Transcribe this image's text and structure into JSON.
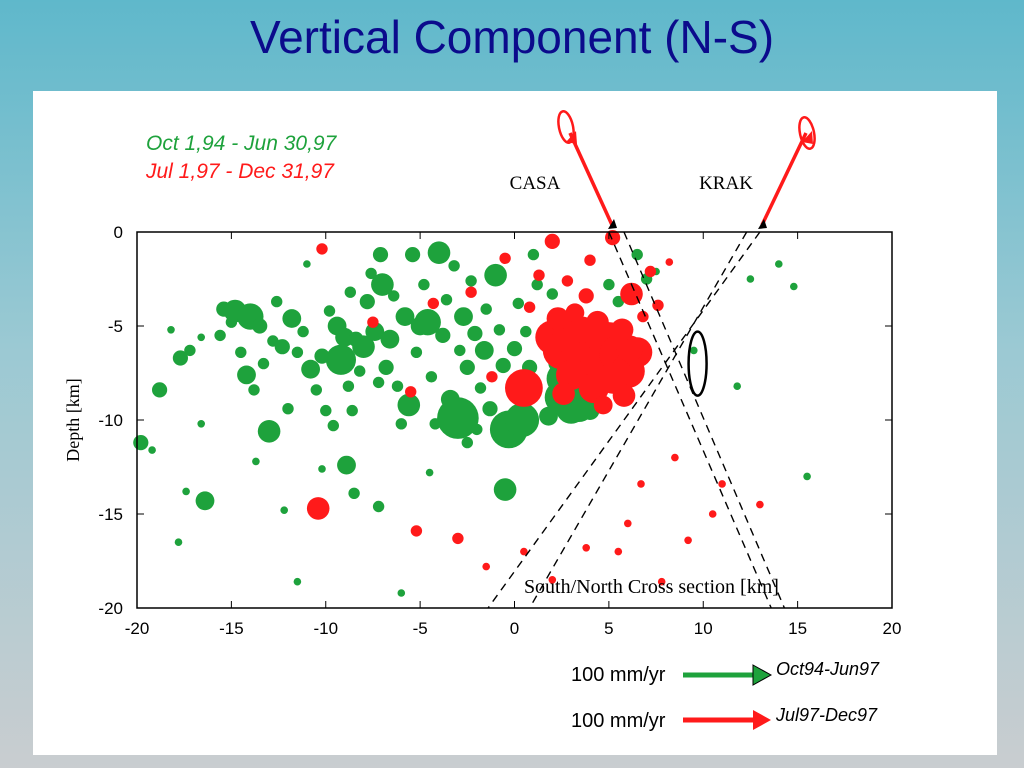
{
  "slide_title": "Vertical Component (N-S)",
  "colors": {
    "period1": "#1ea23c",
    "period2": "#ff1a1a",
    "title": "#0b0b8c"
  },
  "legend": {
    "period1": "Oct 1,94 - Jun 30,97",
    "period2": "Jul 1,97 - Dec 31,97"
  },
  "stations": [
    "CASA",
    "KRAK"
  ],
  "vector_scale": {
    "label1": "100 mm/yr",
    "period1_label": "Oct94-Jun97",
    "label2": "100 mm/yr",
    "period2_label": "Jul97-Dec97"
  },
  "chart_data": {
    "type": "scatter",
    "title": "",
    "xlabel": "South/North Cross section [km]",
    "ylabel": "Depth [km]",
    "xlim": [
      -20,
      20
    ],
    "ylim": [
      -20,
      0
    ],
    "xticks": [
      "-20",
      "-15",
      "-10",
      "-5",
      "0",
      "5",
      "10",
      "15",
      "20"
    ],
    "yticks": [
      "0",
      "-5",
      "-10",
      "-15",
      "-20"
    ],
    "grid": false,
    "legend_position": "top-left",
    "series": [
      {
        "name": "Oct 1,94 - Jun 30,97",
        "color": "#1ea23c",
        "points": [
          [
            -19.8,
            -11.2,
            0.4
          ],
          [
            -19.2,
            -11.6,
            0.2
          ],
          [
            -18.2,
            -5.2,
            0.2
          ],
          [
            -17.7,
            -6.7,
            0.4
          ],
          [
            -17.2,
            -6.3,
            0.3
          ],
          [
            -16.6,
            -5.6,
            0.2
          ],
          [
            -16.4,
            -14.3,
            0.5
          ],
          [
            -15.6,
            -5.5,
            0.3
          ],
          [
            -15.4,
            -4.1,
            0.4
          ],
          [
            -15,
            -4.8,
            0.3
          ],
          [
            -14.8,
            -4.2,
            0.6
          ],
          [
            -14.5,
            -6.4,
            0.3
          ],
          [
            -14.2,
            -7.6,
            0.5
          ],
          [
            -14,
            -4.5,
            0.7
          ],
          [
            -13.8,
            -8.4,
            0.3
          ],
          [
            -13.5,
            -5,
            0.4
          ],
          [
            -13.3,
            -7,
            0.3
          ],
          [
            -13,
            -10.6,
            0.6
          ],
          [
            -12.8,
            -5.8,
            0.3
          ],
          [
            -12.6,
            -3.7,
            0.3
          ],
          [
            -12.3,
            -6.1,
            0.4
          ],
          [
            -12,
            -9.4,
            0.3
          ],
          [
            -11.8,
            -4.6,
            0.5
          ],
          [
            -11.5,
            -6.4,
            0.3
          ],
          [
            -11.2,
            -5.3,
            0.3
          ],
          [
            -11,
            -1.7,
            0.2
          ],
          [
            -10.8,
            -7.3,
            0.5
          ],
          [
            -10.5,
            -8.4,
            0.3
          ],
          [
            -10.2,
            -6.6,
            0.4
          ],
          [
            -10,
            -9.5,
            0.3
          ],
          [
            -9.8,
            -4.2,
            0.3
          ],
          [
            -9.6,
            -10.3,
            0.3
          ],
          [
            -9.4,
            -5,
            0.5
          ],
          [
            -9.2,
            -6.8,
            0.8
          ],
          [
            -9,
            -5.6,
            0.5
          ],
          [
            -8.8,
            -8.2,
            0.3
          ],
          [
            -8.7,
            -3.2,
            0.3
          ],
          [
            -8.6,
            -9.5,
            0.3
          ],
          [
            -8.4,
            -5.7,
            0.4
          ],
          [
            -8.2,
            -7.4,
            0.3
          ],
          [
            -8,
            -6.1,
            0.6
          ],
          [
            -7.8,
            -3.7,
            0.4
          ],
          [
            -7.6,
            -2.2,
            0.3
          ],
          [
            -7.4,
            -5.3,
            0.5
          ],
          [
            -7.2,
            -8,
            0.3
          ],
          [
            -7.1,
            -1.2,
            0.4
          ],
          [
            -7,
            -2.8,
            0.6
          ],
          [
            -6.8,
            -7.2,
            0.4
          ],
          [
            -6.6,
            -5.7,
            0.5
          ],
          [
            -6.4,
            -3.4,
            0.3
          ],
          [
            -6.2,
            -8.2,
            0.3
          ],
          [
            -6,
            -10.2,
            0.3
          ],
          [
            -5.8,
            -4.5,
            0.5
          ],
          [
            -5.6,
            -9.2,
            0.6
          ],
          [
            -5.4,
            -1.2,
            0.4
          ],
          [
            -5.2,
            -6.4,
            0.3
          ],
          [
            -5,
            -5,
            0.5
          ],
          [
            -4.8,
            -2.8,
            0.3
          ],
          [
            -4.6,
            -4.8,
            0.7
          ],
          [
            -4.4,
            -7.7,
            0.3
          ],
          [
            -4.2,
            -10.2,
            0.3
          ],
          [
            -4,
            -1.1,
            0.6
          ],
          [
            -3.8,
            -5.5,
            0.4
          ],
          [
            -3.6,
            -3.6,
            0.3
          ],
          [
            -3.4,
            -8.9,
            0.5
          ],
          [
            -3.2,
            -1.8,
            0.3
          ],
          [
            -3,
            -9.9,
            1.1
          ],
          [
            -2.9,
            -6.3,
            0.3
          ],
          [
            -2.7,
            -4.5,
            0.5
          ],
          [
            -2.5,
            -7.2,
            0.4
          ],
          [
            -2.3,
            -2.6,
            0.3
          ],
          [
            -2.1,
            -5.4,
            0.4
          ],
          [
            -2,
            -10.5,
            0.3
          ],
          [
            -1.8,
            -8.3,
            0.3
          ],
          [
            -1.6,
            -6.3,
            0.5
          ],
          [
            -1.5,
            -4.1,
            0.3
          ],
          [
            -1.3,
            -9.4,
            0.4
          ],
          [
            -1,
            -2.3,
            0.6
          ],
          [
            -0.8,
            -5.2,
            0.3
          ],
          [
            -0.6,
            -7.1,
            0.4
          ],
          [
            -0.5,
            -13.7,
            0.6
          ],
          [
            -0.3,
            -10.5,
            1
          ],
          [
            0,
            -6.2,
            0.4
          ],
          [
            0.2,
            -3.8,
            0.3
          ],
          [
            0.4,
            -10,
            0.9
          ],
          [
            0.6,
            -5.3,
            0.3
          ],
          [
            0.8,
            -7.2,
            0.4
          ],
          [
            1,
            -1.2,
            0.3
          ],
          [
            1.2,
            -2.8,
            0.3
          ],
          [
            1.5,
            -5.5,
            0.3
          ],
          [
            1.8,
            -9.8,
            0.5
          ],
          [
            2,
            -3.3,
            0.3
          ],
          [
            2.2,
            -7,
            0.4
          ],
          [
            2.5,
            -8.8,
            0.9
          ],
          [
            2.6,
            -7.8,
            0.9
          ],
          [
            2.8,
            -8.5,
            0.9
          ],
          [
            3,
            -9.4,
            0.8
          ],
          [
            3.2,
            -8,
            0.7
          ],
          [
            3.4,
            -9.2,
            0.9
          ],
          [
            3.6,
            -7.2,
            0.5
          ],
          [
            3.8,
            -8.8,
            0.7
          ],
          [
            4,
            -9.5,
            0.5
          ],
          [
            4.2,
            -8.1,
            0.5
          ],
          [
            4.5,
            -6.2,
            0.3
          ],
          [
            5,
            -2.8,
            0.3
          ],
          [
            5.5,
            -3.7,
            0.3
          ],
          [
            6,
            -5.1,
            0.2
          ],
          [
            6.5,
            -1.2,
            0.3
          ],
          [
            7,
            -2.5,
            0.3
          ],
          [
            7.5,
            -2.1,
            0.2
          ],
          [
            9.5,
            -6.3,
            0.2
          ],
          [
            12.5,
            -2.5,
            0.2
          ],
          [
            14,
            -1.7,
            0.2
          ],
          [
            14.8,
            -2.9,
            0.2
          ],
          [
            11.8,
            -8.2,
            0.2
          ],
          [
            15.5,
            -13,
            0.2
          ],
          [
            -13.7,
            -12.2,
            0.2
          ],
          [
            -17.4,
            -13.8,
            0.2
          ],
          [
            -17.8,
            -16.5,
            0.2
          ],
          [
            -11.5,
            -18.6,
            0.2
          ],
          [
            -6,
            -19.2,
            0.2
          ],
          [
            -8.5,
            -13.9,
            0.3
          ],
          [
            -7.2,
            -14.6,
            0.3
          ],
          [
            -12.2,
            -14.8,
            0.2
          ],
          [
            -4.5,
            -12.8,
            0.2
          ],
          [
            -2.5,
            -11.2,
            0.3
          ],
          [
            -10.2,
            -12.6,
            0.2
          ],
          [
            -8.9,
            -12.4,
            0.5
          ],
          [
            -16.6,
            -10.2,
            0.2
          ],
          [
            -18.8,
            -8.4,
            0.4
          ]
        ]
      },
      {
        "name": "Jul 1,97 - Dec 31,97",
        "color": "#ff1a1a",
        "points": [
          [
            2,
            -5.6,
            0.9
          ],
          [
            2.5,
            -6.3,
            1
          ],
          [
            3,
            -5.5,
            1
          ],
          [
            3.5,
            -6.7,
            1
          ],
          [
            4,
            -6,
            1
          ],
          [
            4.5,
            -7,
            1
          ],
          [
            5,
            -5.8,
            1
          ],
          [
            5.5,
            -6.5,
            1
          ],
          [
            6,
            -7.4,
            0.9
          ],
          [
            6.5,
            -6.4,
            0.8
          ],
          [
            3,
            -7.6,
            0.8
          ],
          [
            4.2,
            -8.3,
            0.8
          ],
          [
            5.2,
            -7.8,
            0.8
          ],
          [
            6.1,
            -6.2,
            0.7
          ],
          [
            3.6,
            -5.2,
            0.7
          ],
          [
            2.3,
            -4.6,
            0.6
          ],
          [
            3.2,
            -4.3,
            0.5
          ],
          [
            4.4,
            -4.8,
            0.6
          ],
          [
            5.7,
            -5.2,
            0.6
          ],
          [
            2.6,
            -8.6,
            0.6
          ],
          [
            5.8,
            -8.7,
            0.6
          ],
          [
            4.7,
            -9.2,
            0.5
          ],
          [
            0.5,
            -8.3,
            1
          ],
          [
            2,
            -0.5,
            0.4
          ],
          [
            4,
            -1.5,
            0.3
          ],
          [
            5.2,
            -0.3,
            0.4
          ],
          [
            6.2,
            -3.3,
            0.6
          ],
          [
            7.2,
            -2.1,
            0.3
          ],
          [
            1.3,
            -2.3,
            0.3
          ],
          [
            0.8,
            -4,
            0.3
          ],
          [
            2.8,
            -2.6,
            0.3
          ],
          [
            3.8,
            -3.4,
            0.4
          ],
          [
            6.8,
            -4.5,
            0.3
          ],
          [
            7.6,
            -3.9,
            0.3
          ],
          [
            8.2,
            -1.6,
            0.2
          ],
          [
            -10.4,
            -14.7,
            0.6
          ],
          [
            -10.2,
            -0.9,
            0.3
          ],
          [
            -0.5,
            -1.4,
            0.3
          ],
          [
            -2.3,
            -3.2,
            0.3
          ],
          [
            -7.5,
            -4.8,
            0.3
          ],
          [
            -4.3,
            -3.8,
            0.3
          ],
          [
            -1.2,
            -7.7,
            0.3
          ],
          [
            -5.5,
            -8.5,
            0.3
          ],
          [
            -3,
            -16.3,
            0.3
          ],
          [
            -1.5,
            -17.8,
            0.2
          ],
          [
            0.5,
            -17,
            0.2
          ],
          [
            2,
            -18.5,
            0.2
          ],
          [
            5.5,
            -17,
            0.2
          ],
          [
            6,
            -15.5,
            0.2
          ],
          [
            8.5,
            -12,
            0.2
          ],
          [
            10.5,
            -15,
            0.2
          ],
          [
            11,
            -13.4,
            0.2
          ],
          [
            13,
            -14.5,
            0.2
          ],
          [
            9.2,
            -16.4,
            0.2
          ],
          [
            6.7,
            -13.4,
            0.2
          ],
          [
            -5.2,
            -15.9,
            0.3
          ],
          [
            7.8,
            -18.6,
            0.2
          ],
          [
            3.8,
            -16.8,
            0.2
          ]
        ]
      }
    ]
  }
}
